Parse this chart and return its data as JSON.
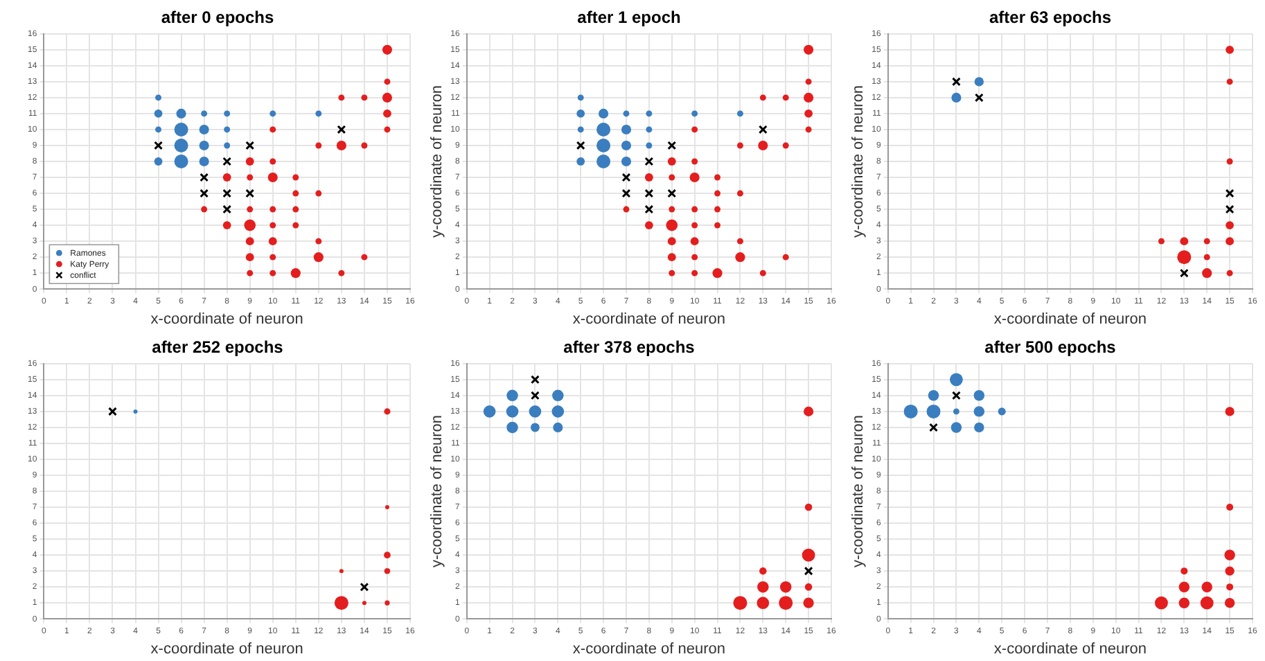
{
  "chart_data": [
    {
      "type": "bubble",
      "title": "after 0 epochs",
      "xlabel": "x-coordinate of neuron",
      "xlim": [
        0,
        16
      ],
      "ylim": [
        0,
        16
      ],
      "xticks": [
        0,
        1,
        2,
        3,
        4,
        5,
        6,
        7,
        8,
        9,
        10,
        11,
        12,
        13,
        14,
        15,
        16
      ],
      "yticks": [
        0,
        1,
        2,
        3,
        4,
        5,
        6,
        7,
        8,
        9,
        10,
        11,
        12,
        13,
        14,
        15,
        16
      ],
      "grid": true,
      "legend": "bottom left",
      "series": [
        {
          "name": "Ramones",
          "color": "#3a7ebf",
          "x": [
            5,
            5,
            5,
            5,
            6,
            6,
            6,
            6,
            7,
            7,
            7,
            7,
            8,
            8,
            8,
            10,
            12
          ],
          "values": [
            12,
            11,
            10,
            8,
            11,
            10,
            9,
            8,
            11,
            10,
            9,
            8,
            11,
            10,
            9,
            11,
            11
          ],
          "sizes": [
            0.2,
            0.35,
            0.2,
            0.35,
            0.5,
            1,
            1,
            1,
            0.2,
            0.5,
            0.5,
            0.5,
            0.2,
            0.2,
            0.2,
            0.2,
            0.2
          ]
        },
        {
          "name": "Katy Perry",
          "color": "#e41e1e",
          "x": [
            15,
            15,
            15,
            15,
            15,
            13,
            14,
            12,
            13,
            14,
            10,
            9,
            10,
            8,
            9,
            10,
            11,
            11,
            12,
            7,
            9,
            10,
            11,
            8,
            9,
            10,
            11,
            9,
            10,
            12,
            9,
            10,
            12,
            14,
            9,
            10,
            11,
            13
          ],
          "values": [
            15,
            13,
            12,
            11,
            10,
            12,
            12,
            9,
            9,
            9,
            10,
            8,
            8,
            7,
            7,
            7,
            7,
            6,
            6,
            5,
            5,
            5,
            5,
            4,
            4,
            4,
            4,
            3,
            3,
            3,
            2,
            2,
            2,
            2,
            1,
            1,
            1,
            1
          ],
          "sizes": [
            0.5,
            0.2,
            0.5,
            0.35,
            0.2,
            0.2,
            0.2,
            0.2,
            0.5,
            0.2,
            0.2,
            0.35,
            0.2,
            0.35,
            0.2,
            0.5,
            0.2,
            0.2,
            0.2,
            0.2,
            0.2,
            0.2,
            0.2,
            0.35,
            0.7,
            0.2,
            0.2,
            0.35,
            0.35,
            0.2,
            0.35,
            0.2,
            0.5,
            0.2,
            0.2,
            0.2,
            0.5,
            0.2
          ]
        },
        {
          "name": "conflict",
          "type": "scatter",
          "marker": "cross",
          "color": "#000000",
          "x": [
            5,
            9,
            8,
            7,
            7,
            8,
            9,
            8,
            13
          ],
          "values": [
            9,
            9,
            8,
            7,
            6,
            6,
            6,
            5,
            10
          ]
        }
      ]
    },
    {
      "type": "bubble",
      "title": "after 1 epoch",
      "xlabel": "x-coordinate of neuron",
      "ylabel": "y-coordinate of neuron",
      "xlim": [
        0,
        16
      ],
      "ylim": [
        0,
        16
      ],
      "xticks": [
        0,
        1,
        2,
        3,
        4,
        5,
        6,
        7,
        8,
        9,
        10,
        11,
        12,
        13,
        14,
        15,
        16
      ],
      "yticks": [
        0,
        1,
        2,
        3,
        4,
        5,
        6,
        7,
        8,
        9,
        10,
        11,
        12,
        13,
        14,
        15,
        16
      ],
      "grid": true,
      "series": [
        {
          "color": "#3a7ebf",
          "x": [
            5,
            5,
            5,
            5,
            6,
            6,
            6,
            6,
            7,
            7,
            7,
            7,
            8,
            8,
            8,
            10,
            12
          ],
          "values": [
            12,
            11,
            10,
            8,
            11,
            10,
            9,
            8,
            11,
            10,
            9,
            8,
            11,
            10,
            9,
            11,
            11
          ],
          "sizes": [
            0.2,
            0.35,
            0.2,
            0.35,
            0.5,
            1,
            1,
            1,
            0.2,
            0.5,
            0.5,
            0.5,
            0.2,
            0.2,
            0.2,
            0.2,
            0.2
          ]
        },
        {
          "color": "#e41e1e",
          "x": [
            15,
            15,
            15,
            15,
            15,
            13,
            14,
            12,
            13,
            14,
            10,
            9,
            10,
            8,
            9,
            10,
            11,
            11,
            12,
            7,
            9,
            10,
            11,
            8,
            9,
            10,
            11,
            9,
            10,
            12,
            9,
            10,
            12,
            14,
            9,
            10,
            11,
            13
          ],
          "values": [
            15,
            13,
            12,
            11,
            10,
            12,
            12,
            9,
            9,
            9,
            10,
            8,
            8,
            7,
            7,
            7,
            7,
            6,
            6,
            5,
            5,
            5,
            5,
            4,
            4,
            4,
            4,
            3,
            3,
            3,
            2,
            2,
            2,
            2,
            1,
            1,
            1,
            1
          ],
          "sizes": [
            0.5,
            0.2,
            0.5,
            0.35,
            0.2,
            0.2,
            0.2,
            0.2,
            0.5,
            0.2,
            0.2,
            0.35,
            0.2,
            0.35,
            0.2,
            0.5,
            0.2,
            0.2,
            0.2,
            0.2,
            0.2,
            0.2,
            0.2,
            0.35,
            0.7,
            0.2,
            0.2,
            0.35,
            0.35,
            0.2,
            0.35,
            0.2,
            0.5,
            0.2,
            0.2,
            0.2,
            0.5,
            0.2
          ]
        },
        {
          "type": "scatter",
          "marker": "cross",
          "color": "#000000",
          "x": [
            5,
            9,
            8,
            7,
            7,
            8,
            9,
            8,
            13
          ],
          "values": [
            9,
            9,
            8,
            7,
            6,
            6,
            6,
            5,
            10
          ]
        }
      ]
    },
    {
      "type": "bubble",
      "title": "after 63 epochs",
      "xlabel": "x-coordinate of neuron",
      "ylabel": "y-coordinate of neuron",
      "xlim": [
        0,
        16
      ],
      "ylim": [
        0,
        16
      ],
      "xticks": [
        0,
        1,
        2,
        3,
        4,
        5,
        6,
        7,
        8,
        9,
        10,
        11,
        12,
        13,
        14,
        15,
        16
      ],
      "yticks": [
        0,
        1,
        2,
        3,
        4,
        5,
        6,
        7,
        8,
        9,
        10,
        11,
        12,
        13,
        14,
        15,
        16
      ],
      "grid": true,
      "series": [
        {
          "color": "#3a7ebf",
          "x": [
            3,
            4
          ],
          "values": [
            12,
            13
          ],
          "sizes": [
            0.5,
            0.45
          ]
        },
        {
          "color": "#e41e1e",
          "x": [
            15,
            15,
            15,
            15,
            15,
            15,
            12,
            13,
            14,
            13,
            14,
            14
          ],
          "values": [
            15,
            13,
            8,
            4,
            3,
            1,
            3,
            3,
            3,
            2,
            2,
            1
          ],
          "sizes": [
            0.35,
            0.2,
            0.2,
            0.35,
            0.35,
            0.2,
            0.2,
            0.35,
            0.2,
            1,
            0.2,
            0.5
          ]
        },
        {
          "type": "scatter",
          "marker": "cross",
          "color": "#000000",
          "x": [
            3,
            4,
            15,
            15,
            13
          ],
          "values": [
            13,
            12,
            6,
            5,
            1
          ]
        }
      ]
    },
    {
      "type": "bubble",
      "title": "after 252 epochs",
      "xlabel": "x-coordinate of neuron",
      "xlim": [
        0,
        16
      ],
      "ylim": [
        0,
        16
      ],
      "xticks": [
        0,
        1,
        2,
        3,
        4,
        5,
        6,
        7,
        8,
        9,
        10,
        11,
        12,
        13,
        14,
        15,
        16
      ],
      "yticks": [
        0,
        1,
        2,
        3,
        4,
        5,
        6,
        7,
        8,
        9,
        10,
        11,
        12,
        13,
        14,
        15,
        16
      ],
      "grid": true,
      "series": [
        {
          "color": "#3a7ebf",
          "x": [
            4
          ],
          "values": [
            13
          ],
          "sizes": [
            0.09
          ]
        },
        {
          "color": "#e41e1e",
          "x": [
            15,
            15,
            15,
            15,
            13,
            13,
            14,
            15
          ],
          "values": [
            13,
            7,
            4,
            3,
            3,
            1,
            1,
            1
          ],
          "sizes": [
            0.21,
            0.09,
            0.24,
            0.18,
            0.09,
            1,
            0.09,
            0.13
          ]
        },
        {
          "type": "scatter",
          "marker": "cross",
          "color": "#000000",
          "x": [
            3,
            14
          ],
          "values": [
            13,
            2
          ]
        }
      ]
    },
    {
      "type": "bubble",
      "title": "after 378 epochs",
      "xlabel": "x-coordinate of neuron",
      "ylabel": "y-coordinate of neuron",
      "xlim": [
        0,
        16
      ],
      "ylim": [
        0,
        16
      ],
      "xticks": [
        0,
        1,
        2,
        3,
        4,
        5,
        6,
        7,
        8,
        9,
        10,
        11,
        12,
        13,
        14,
        15,
        16
      ],
      "yticks": [
        0,
        1,
        2,
        3,
        4,
        5,
        6,
        7,
        8,
        9,
        10,
        11,
        12,
        13,
        14,
        15,
        16
      ],
      "grid": true,
      "series": [
        {
          "color": "#3a7ebf",
          "x": [
            1,
            2,
            2,
            2,
            3,
            3,
            4,
            4,
            4
          ],
          "values": [
            13,
            14,
            13,
            12,
            13,
            12,
            14,
            13,
            12
          ],
          "sizes": [
            0.78,
            0.68,
            0.78,
            0.68,
            0.78,
            0.42,
            0.68,
            0.78,
            0.5
          ]
        },
        {
          "color": "#e41e1e",
          "x": [
            15,
            15,
            15,
            13,
            13,
            14,
            15,
            12,
            13,
            14,
            15
          ],
          "values": [
            13,
            7,
            4,
            3,
            2,
            2,
            2,
            1,
            1,
            1,
            1
          ],
          "sizes": [
            0.5,
            0.28,
            0.89,
            0.28,
            0.68,
            0.68,
            0.28,
            1,
            0.78,
            1,
            0.58
          ]
        },
        {
          "type": "scatter",
          "marker": "cross",
          "color": "#000000",
          "x": [
            3,
            3,
            15
          ],
          "values": [
            15,
            14,
            3
          ]
        }
      ]
    },
    {
      "type": "bubble",
      "title": "after 500 epochs",
      "xlabel": "x-coordinate of neuron",
      "ylabel": "y-coordinate of neuron",
      "xlim": [
        0,
        16
      ],
      "ylim": [
        0,
        16
      ],
      "xticks": [
        0,
        1,
        2,
        3,
        4,
        5,
        6,
        7,
        8,
        9,
        10,
        11,
        12,
        13,
        14,
        15,
        16
      ],
      "yticks": [
        0,
        1,
        2,
        3,
        4,
        5,
        6,
        7,
        8,
        9,
        10,
        11,
        12,
        13,
        14,
        15,
        16
      ],
      "grid": true,
      "series": [
        {
          "color": "#3a7ebf",
          "x": [
            1,
            2,
            2,
            3,
            3,
            3,
            4,
            4,
            4,
            5
          ],
          "values": [
            13,
            14,
            13,
            15,
            13,
            12,
            14,
            13,
            12,
            13
          ],
          "sizes": [
            1,
            0.6,
            1,
            0.89,
            0.2,
            0.6,
            0.6,
            0.6,
            0.52,
            0.31
          ]
        },
        {
          "color": "#e41e1e",
          "x": [
            15,
            15,
            15,
            15,
            15,
            13,
            13,
            14,
            12,
            13,
            14,
            15
          ],
          "values": [
            13,
            7,
            4,
            3,
            2,
            3,
            2,
            2,
            1,
            1,
            1,
            1
          ],
          "sizes": [
            0.44,
            0.25,
            0.6,
            0.44,
            0.25,
            0.25,
            0.6,
            0.6,
            0.89,
            0.6,
            0.89,
            0.52
          ]
        },
        {
          "type": "scatter",
          "marker": "cross",
          "color": "#000000",
          "x": [
            3,
            2
          ],
          "values": [
            14,
            12
          ]
        }
      ]
    }
  ]
}
